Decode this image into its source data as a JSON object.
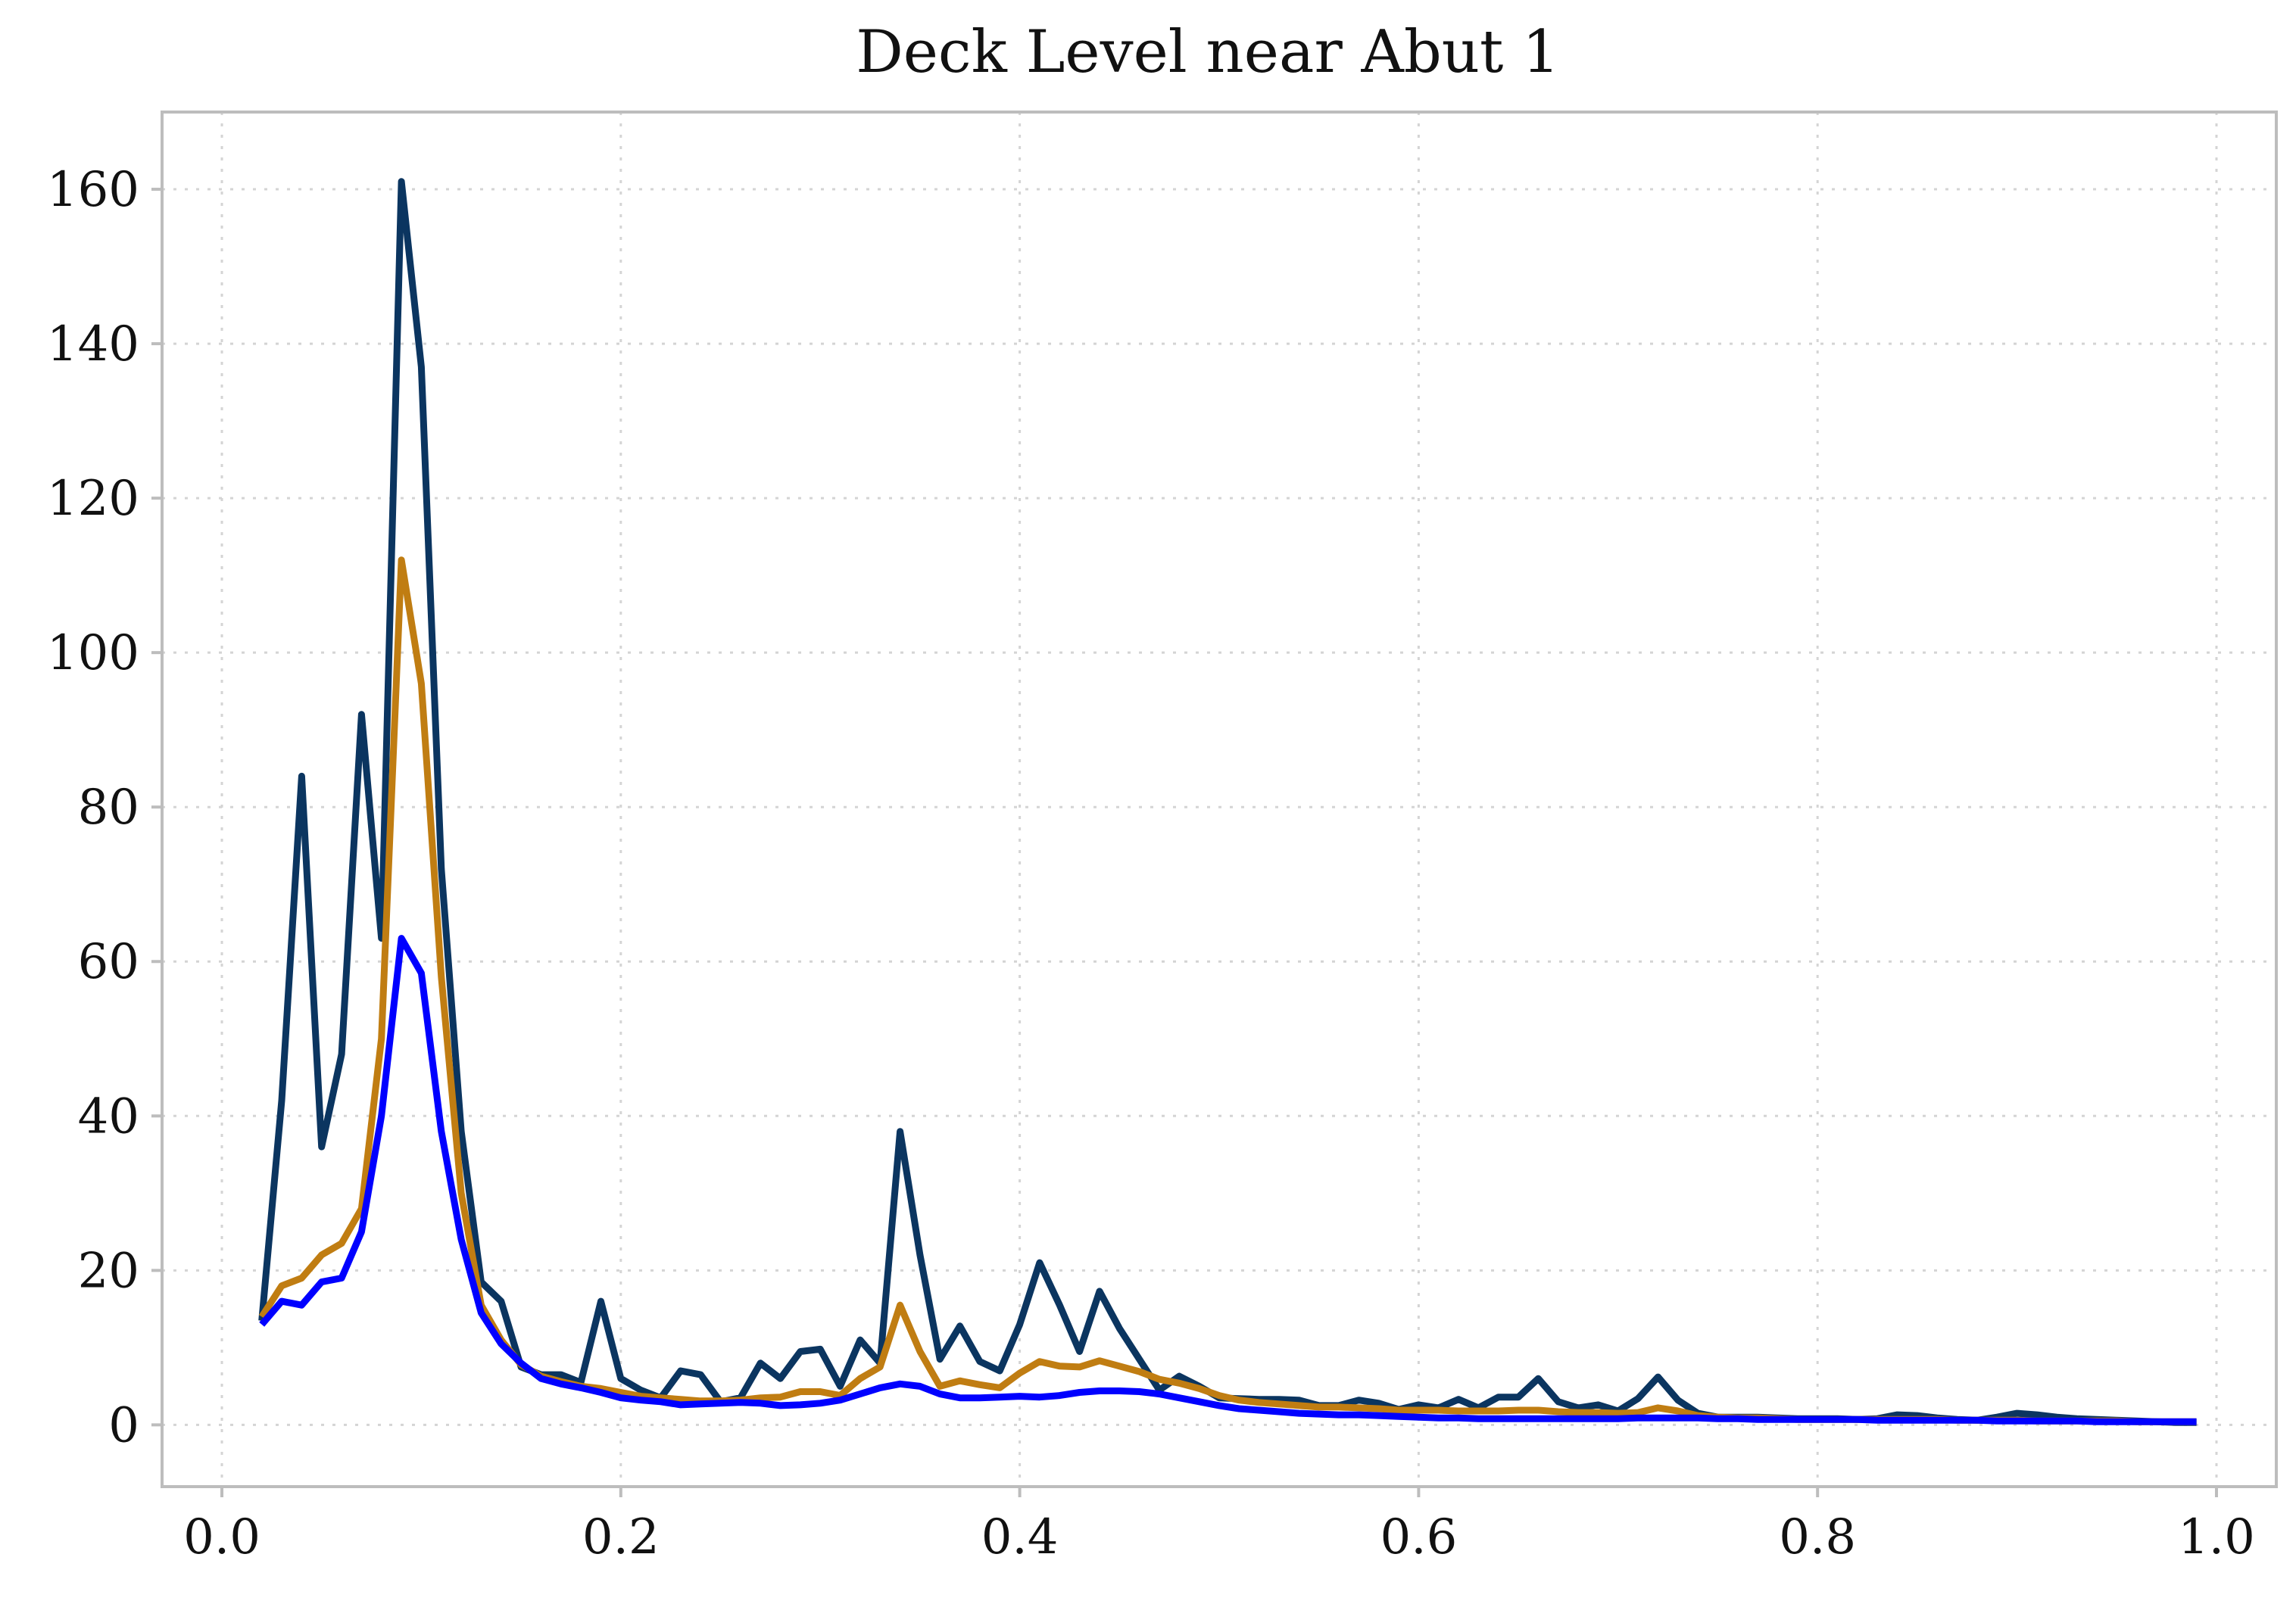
{
  "chart_data": {
    "type": "line",
    "title": "Deck Level near Abut 1",
    "xlabel": "",
    "ylabel": "",
    "xlim": [
      -0.03,
      1.03
    ],
    "ylim": [
      -8,
      170
    ],
    "xticks": [
      0.0,
      0.2,
      0.4,
      0.6,
      0.8,
      1.0
    ],
    "xtick_labels": [
      "0.0",
      "0.2",
      "0.4",
      "0.6",
      "0.8",
      "1.0"
    ],
    "yticks": [
      0,
      20,
      40,
      60,
      80,
      100,
      120,
      140,
      160
    ],
    "ytick_labels": [
      "0",
      "20",
      "40",
      "60",
      "80",
      "100",
      "120",
      "140",
      "160"
    ],
    "grid": true,
    "x": [
      0.02,
      0.03,
      0.04,
      0.05,
      0.06,
      0.07,
      0.08,
      0.09,
      0.1,
      0.11,
      0.12,
      0.13,
      0.14,
      0.15,
      0.16,
      0.17,
      0.18,
      0.19,
      0.2,
      0.21,
      0.22,
      0.23,
      0.24,
      0.25,
      0.26,
      0.27,
      0.28,
      0.29,
      0.3,
      0.31,
      0.32,
      0.33,
      0.34,
      0.35,
      0.36,
      0.37,
      0.38,
      0.39,
      0.4,
      0.41,
      0.42,
      0.43,
      0.44,
      0.45,
      0.46,
      0.47,
      0.48,
      0.49,
      0.5,
      0.51,
      0.52,
      0.53,
      0.54,
      0.55,
      0.56,
      0.57,
      0.58,
      0.59,
      0.6,
      0.61,
      0.62,
      0.63,
      0.64,
      0.65,
      0.66,
      0.67,
      0.68,
      0.69,
      0.7,
      0.71,
      0.72,
      0.73,
      0.74,
      0.75,
      0.76,
      0.77,
      0.78,
      0.79,
      0.8,
      0.81,
      0.82,
      0.83,
      0.84,
      0.85,
      0.86,
      0.87,
      0.88,
      0.89,
      0.9,
      0.91,
      0.92,
      0.93,
      0.94,
      0.95,
      0.96,
      0.97,
      0.98,
      0.99
    ],
    "series": [
      {
        "color": "#0b3560",
        "values": [
          13.5,
          42,
          84,
          36,
          48,
          92,
          63,
          161,
          137,
          72,
          38,
          18.5,
          16,
          7.5,
          6.5,
          6.5,
          5.5,
          16,
          6,
          4.5,
          3.5,
          7,
          6.5,
          3,
          3.5,
          8,
          6,
          9.5,
          9.8,
          5,
          11,
          8,
          38,
          22,
          8.5,
          12.8,
          8.2,
          7,
          13,
          21,
          15.5,
          9.5,
          17.3,
          12.5,
          8.5,
          4.5,
          6.3,
          5,
          3.5,
          3.4,
          3.3,
          3.3,
          3.2,
          2.5,
          2.5,
          3.2,
          2.8,
          2,
          2.6,
          2.2,
          3.3,
          2.2,
          3.6,
          3.6,
          6,
          3,
          2.2,
          2.6,
          1.8,
          3.4,
          6.2,
          3.2,
          1.5,
          1.0,
          1.0,
          1.0,
          0.9,
          0.8,
          0.8,
          0.8,
          0.7,
          0.8,
          1.3,
          1.2,
          0.9,
          0.7,
          0.6,
          1.0,
          1.5,
          1.3,
          1.0,
          0.8,
          0.7,
          0.6,
          0.5,
          0.4,
          0.3,
          0.3
        ]
      },
      {
        "color": "#c07d12",
        "values": [
          14,
          18,
          19,
          22,
          23.5,
          28,
          50,
          112,
          96,
          58,
          30,
          15.5,
          11,
          7.8,
          6.3,
          5.6,
          5,
          4.7,
          4.2,
          3.7,
          3.5,
          3.3,
          3.1,
          3.1,
          3.2,
          3.5,
          3.6,
          4.3,
          4.3,
          3.8,
          6,
          7.5,
          15.5,
          9.5,
          5,
          5.7,
          5.2,
          4.8,
          6.7,
          8.2,
          7.6,
          7.5,
          8.3,
          7.6,
          6.9,
          5.9,
          5.4,
          4.7,
          3.8,
          3.2,
          2.9,
          2.7,
          2.5,
          2.3,
          2.3,
          2.2,
          2.1,
          1.9,
          1.9,
          1.9,
          1.8,
          1.8,
          1.8,
          1.9,
          1.9,
          1.7,
          1.6,
          1.6,
          1.5,
          1.6,
          2.2,
          1.8,
          1.2,
          1.0,
          0.9,
          0.9,
          0.8,
          0.7,
          0.7,
          0.7,
          0.7,
          0.7,
          0.7,
          0.7,
          0.7,
          0.6,
          0.6,
          0.6,
          0.6,
          0.5,
          0.5,
          0.5,
          0.5,
          0.5,
          0.4,
          0.4,
          0.4,
          0.4
        ]
      },
      {
        "color": "#0000ff",
        "values": [
          13,
          16,
          15.5,
          18.5,
          19,
          25,
          40,
          63,
          58.5,
          38,
          24,
          14.5,
          10.5,
          8,
          6,
          5.3,
          4.8,
          4.2,
          3.5,
          3.2,
          3,
          2.6,
          2.7,
          2.8,
          2.9,
          2.8,
          2.5,
          2.6,
          2.8,
          3.2,
          4,
          4.8,
          5.3,
          5,
          4,
          3.5,
          3.5,
          3.6,
          3.7,
          3.6,
          3.8,
          4.2,
          4.4,
          4.4,
          4.3,
          4,
          3.5,
          3,
          2.5,
          2.1,
          1.9,
          1.7,
          1.5,
          1.4,
          1.3,
          1.3,
          1.2,
          1.1,
          1.0,
          0.9,
          0.9,
          0.8,
          0.8,
          0.8,
          0.8,
          0.8,
          0.8,
          0.8,
          0.8,
          0.9,
          0.9,
          0.9,
          0.9,
          0.8,
          0.8,
          0.7,
          0.7,
          0.7,
          0.7,
          0.7,
          0.7,
          0.6,
          0.6,
          0.6,
          0.6,
          0.6,
          0.6,
          0.5,
          0.5,
          0.5,
          0.5,
          0.5,
          0.4,
          0.4,
          0.4,
          0.4,
          0.4,
          0.4
        ]
      }
    ]
  }
}
